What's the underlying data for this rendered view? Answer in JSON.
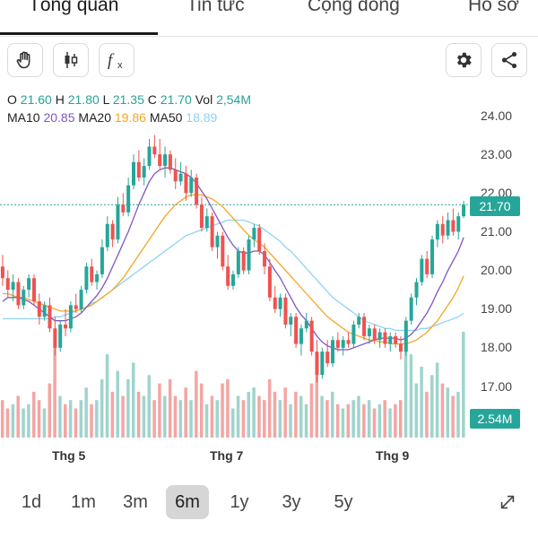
{
  "tabs": [
    {
      "label": "Tổng quan",
      "active": true
    },
    {
      "label": "Tin tức",
      "active": false
    },
    {
      "label": "Cộng đồng",
      "active": false
    },
    {
      "label": "Hồ sơ",
      "active": false
    }
  ],
  "toolbar": {
    "left_icons": [
      "hand-draw-icon",
      "candlestick-icon",
      "function-icon"
    ],
    "right_icons": [
      "gear-icon",
      "share-icon"
    ]
  },
  "legend": {
    "o_label": "O",
    "o_value": "21.60",
    "h_label": "H",
    "h_value": "21.80",
    "l_label": "L",
    "l_value": "21.35",
    "c_label": "C",
    "c_value": "21.70",
    "vol_label": "Vol",
    "vol_value": "2,54M",
    "ma10_label": "MA10",
    "ma10_value": "20.85",
    "ma20_label": "MA20",
    "ma20_value": "19.86",
    "ma50_label": "MA50",
    "ma50_value": "18.89"
  },
  "colors": {
    "up": "#26a69a",
    "down": "#ef5350",
    "ma10": "#7e57c2",
    "ma20": "#f5a623",
    "ma50": "#8fd3f4",
    "vol_up": "#9fd4cd",
    "vol_down": "#f4a5a3"
  },
  "price_tag": "21.70",
  "volume_tag": "2.54M",
  "time_ranges": [
    {
      "label": "1d",
      "active": false
    },
    {
      "label": "1m",
      "active": false
    },
    {
      "label": "3m",
      "active": false
    },
    {
      "label": "6m",
      "active": true
    },
    {
      "label": "1y",
      "active": false
    },
    {
      "label": "3y",
      "active": false
    },
    {
      "label": "5y",
      "active": false
    }
  ],
  "chart_data": {
    "type": "line",
    "y_axis_labels": [
      "24.00",
      "23.00",
      "22.00",
      "21.00",
      "20.00",
      "19.00",
      "18.00",
      "17.00"
    ],
    "ylim": [
      16.5,
      24.3
    ],
    "x_axis_labels": [
      "Thg 5",
      "Thg 7",
      "Thg 9"
    ],
    "last_close": 21.7,
    "candles": [
      [
        20.1,
        20.4,
        19.6,
        19.8
      ],
      [
        19.8,
        20.0,
        19.3,
        19.5
      ],
      [
        19.5,
        19.9,
        19.2,
        19.7
      ],
      [
        19.7,
        19.8,
        19.0,
        19.1
      ],
      [
        19.1,
        19.6,
        19.0,
        19.5
      ],
      [
        19.5,
        19.9,
        19.3,
        19.8
      ],
      [
        19.8,
        19.9,
        19.1,
        19.2
      ],
      [
        19.2,
        19.4,
        18.6,
        18.8
      ],
      [
        18.8,
        19.2,
        18.7,
        19.1
      ],
      [
        19.1,
        19.3,
        18.4,
        18.5
      ],
      [
        18.5,
        18.8,
        17.8,
        18.0
      ],
      [
        18.0,
        18.7,
        17.9,
        18.6
      ],
      [
        18.6,
        19.0,
        18.3,
        18.5
      ],
      [
        18.5,
        19.2,
        18.4,
        19.1
      ],
      [
        19.1,
        19.4,
        18.9,
        19.0
      ],
      [
        19.0,
        19.6,
        18.9,
        19.5
      ],
      [
        19.5,
        20.2,
        19.4,
        20.1
      ],
      [
        20.1,
        20.3,
        19.6,
        19.7
      ],
      [
        19.7,
        20.0,
        19.5,
        19.9
      ],
      [
        19.9,
        20.8,
        19.8,
        20.6
      ],
      [
        20.6,
        21.4,
        20.5,
        21.2
      ],
      [
        21.2,
        21.3,
        20.6,
        20.8
      ],
      [
        20.8,
        21.9,
        20.7,
        21.7
      ],
      [
        21.7,
        22.0,
        21.4,
        21.5
      ],
      [
        21.5,
        22.4,
        21.4,
        22.2
      ],
      [
        22.2,
        23.0,
        22.1,
        22.8
      ],
      [
        22.8,
        23.1,
        22.3,
        22.4
      ],
      [
        22.4,
        22.9,
        22.2,
        22.7
      ],
      [
        22.7,
        23.4,
        22.6,
        23.2
      ],
      [
        23.2,
        23.5,
        22.9,
        23.0
      ],
      [
        23.0,
        23.4,
        22.6,
        22.7
      ],
      [
        22.7,
        23.2,
        22.4,
        23.0
      ],
      [
        23.0,
        23.1,
        22.5,
        22.6
      ],
      [
        22.6,
        22.9,
        22.1,
        22.3
      ],
      [
        22.3,
        22.8,
        22.2,
        22.5
      ],
      [
        22.5,
        22.7,
        21.8,
        22.0
      ],
      [
        22.0,
        22.6,
        21.9,
        22.4
      ],
      [
        22.4,
        22.5,
        21.6,
        21.7
      ],
      [
        21.7,
        21.9,
        21.0,
        21.1
      ],
      [
        21.1,
        21.6,
        21.0,
        21.4
      ],
      [
        21.4,
        21.5,
        20.5,
        20.6
      ],
      [
        20.6,
        21.0,
        20.3,
        20.9
      ],
      [
        20.9,
        21.0,
        20.0,
        20.1
      ],
      [
        20.1,
        20.4,
        19.5,
        19.6
      ],
      [
        19.6,
        20.0,
        19.5,
        19.9
      ],
      [
        19.9,
        20.6,
        19.8,
        20.5
      ],
      [
        20.5,
        20.6,
        19.9,
        20.0
      ],
      [
        20.0,
        20.9,
        19.9,
        20.8
      ],
      [
        20.8,
        21.2,
        20.6,
        21.1
      ],
      [
        21.1,
        21.2,
        20.4,
        20.5
      ],
      [
        20.5,
        20.7,
        19.9,
        20.1
      ],
      [
        20.1,
        20.3,
        19.2,
        19.3
      ],
      [
        19.3,
        19.6,
        18.9,
        19.0
      ],
      [
        19.0,
        19.4,
        18.8,
        19.3
      ],
      [
        19.3,
        19.4,
        18.5,
        18.6
      ],
      [
        18.6,
        18.9,
        18.3,
        18.8
      ],
      [
        18.8,
        18.9,
        18.0,
        18.1
      ],
      [
        18.1,
        18.6,
        17.8,
        18.5
      ],
      [
        18.5,
        18.9,
        18.4,
        18.7
      ],
      [
        18.7,
        18.8,
        17.8,
        17.9
      ],
      [
        17.9,
        18.2,
        17.1,
        17.3
      ],
      [
        17.3,
        18.0,
        17.2,
        17.9
      ],
      [
        17.9,
        18.2,
        17.5,
        17.6
      ],
      [
        17.6,
        18.3,
        17.5,
        18.2
      ],
      [
        18.2,
        18.4,
        17.9,
        18.0
      ],
      [
        18.0,
        18.3,
        17.8,
        18.2
      ],
      [
        18.2,
        18.4,
        18.0,
        18.1
      ],
      [
        18.1,
        18.7,
        18.0,
        18.6
      ],
      [
        18.6,
        18.9,
        18.5,
        18.8
      ],
      [
        18.8,
        18.9,
        18.2,
        18.3
      ],
      [
        18.3,
        18.6,
        18.1,
        18.5
      ],
      [
        18.5,
        18.6,
        18.1,
        18.2
      ],
      [
        18.2,
        18.5,
        18.0,
        18.4
      ],
      [
        18.4,
        18.5,
        18.0,
        18.1
      ],
      [
        18.1,
        18.4,
        17.9,
        18.3
      ],
      [
        18.3,
        18.4,
        18.0,
        18.1
      ],
      [
        18.1,
        18.3,
        17.7,
        17.9
      ],
      [
        17.9,
        18.8,
        17.8,
        18.7
      ],
      [
        18.7,
        19.4,
        18.6,
        19.3
      ],
      [
        19.3,
        19.8,
        19.1,
        19.7
      ],
      [
        19.7,
        20.4,
        19.6,
        20.3
      ],
      [
        20.3,
        20.5,
        19.8,
        19.9
      ],
      [
        19.9,
        20.9,
        19.8,
        20.8
      ],
      [
        20.8,
        21.3,
        20.6,
        21.2
      ],
      [
        21.2,
        21.4,
        20.7,
        20.9
      ],
      [
        20.9,
        21.5,
        20.8,
        21.3
      ],
      [
        21.3,
        21.6,
        20.9,
        21.0
      ],
      [
        21.0,
        21.5,
        20.8,
        21.4
      ],
      [
        21.4,
        21.8,
        21.35,
        21.7
      ]
    ],
    "ma10": [
      19.2,
      19.3,
      19.3,
      19.3,
      19.25,
      19.2,
      19.1,
      19.0,
      18.9,
      18.8,
      18.7,
      18.7,
      18.7,
      18.75,
      18.8,
      18.9,
      19.05,
      19.2,
      19.35,
      19.55,
      19.8,
      20.1,
      20.4,
      20.7,
      21.0,
      21.35,
      21.7,
      22.0,
      22.3,
      22.5,
      22.6,
      22.65,
      22.65,
      22.6,
      22.55,
      22.5,
      22.4,
      22.25,
      22.05,
      21.85,
      21.6,
      21.35,
      21.1,
      20.85,
      20.65,
      20.5,
      20.45,
      20.45,
      20.5,
      20.5,
      20.4,
      20.2,
      20.0,
      19.8,
      19.55,
      19.3,
      19.05,
      18.85,
      18.7,
      18.5,
      18.3,
      18.15,
      18.05,
      18.0,
      17.95,
      17.95,
      17.95,
      18.0,
      18.05,
      18.1,
      18.15,
      18.2,
      18.25,
      18.25,
      18.25,
      18.25,
      18.2,
      18.25,
      18.35,
      18.5,
      18.7,
      18.9,
      19.15,
      19.45,
      19.7,
      20.0,
      20.25,
      20.5,
      20.85
    ],
    "ma20": [
      19.4,
      19.4,
      19.35,
      19.3,
      19.3,
      19.25,
      19.2,
      19.15,
      19.1,
      19.05,
      19.0,
      18.95,
      18.95,
      18.95,
      18.95,
      19.0,
      19.05,
      19.1,
      19.2,
      19.3,
      19.4,
      19.5,
      19.65,
      19.8,
      20.0,
      20.2,
      20.4,
      20.6,
      20.8,
      21.0,
      21.2,
      21.4,
      21.55,
      21.7,
      21.8,
      21.9,
      21.95,
      21.95,
      21.95,
      21.9,
      21.85,
      21.75,
      21.65,
      21.5,
      21.35,
      21.2,
      21.05,
      20.9,
      20.8,
      20.7,
      20.6,
      20.45,
      20.3,
      20.15,
      20.0,
      19.85,
      19.7,
      19.55,
      19.4,
      19.25,
      19.1,
      18.95,
      18.8,
      18.7,
      18.6,
      18.5,
      18.4,
      18.35,
      18.3,
      18.25,
      18.2,
      18.2,
      18.15,
      18.15,
      18.1,
      18.1,
      18.1,
      18.1,
      18.15,
      18.2,
      18.3,
      18.4,
      18.55,
      18.7,
      18.9,
      19.1,
      19.3,
      19.55,
      19.86
    ],
    "ma50": [
      18.75,
      18.75,
      18.75,
      18.75,
      18.75,
      18.75,
      18.75,
      18.75,
      18.75,
      18.75,
      18.8,
      18.8,
      18.85,
      18.9,
      18.95,
      19.0,
      19.05,
      19.15,
      19.2,
      19.3,
      19.4,
      19.5,
      19.6,
      19.7,
      19.8,
      19.9,
      20.0,
      20.1,
      20.2,
      20.3,
      20.4,
      20.5,
      20.6,
      20.7,
      20.8,
      20.9,
      20.95,
      21.0,
      21.05,
      21.1,
      21.15,
      21.2,
      21.25,
      21.3,
      21.3,
      21.3,
      21.3,
      21.25,
      21.2,
      21.15,
      21.05,
      20.95,
      20.85,
      20.75,
      20.6,
      20.5,
      20.35,
      20.2,
      20.05,
      19.9,
      19.75,
      19.6,
      19.45,
      19.3,
      19.2,
      19.1,
      19.0,
      18.9,
      18.8,
      18.7,
      18.65,
      18.6,
      18.55,
      18.5,
      18.5,
      18.45,
      18.45,
      18.45,
      18.45,
      18.45,
      18.5,
      18.5,
      18.55,
      18.6,
      18.65,
      18.7,
      18.75,
      18.8,
      18.89
    ],
    "volume": [
      0.9,
      0.7,
      0.8,
      1.0,
      0.7,
      0.8,
      1.1,
      0.9,
      0.7,
      1.3,
      2.2,
      1.0,
      0.8,
      0.9,
      0.7,
      0.9,
      1.2,
      0.8,
      0.9,
      1.4,
      2.0,
      1.1,
      1.6,
      1.0,
      1.4,
      1.8,
      1.1,
      1.0,
      1.5,
      0.9,
      1.3,
      1.0,
      1.4,
      1.0,
      0.9,
      1.2,
      0.9,
      1.6,
      1.3,
      0.8,
      1.0,
      0.9,
      1.3,
      1.4,
      0.7,
      1.0,
      0.9,
      1.1,
      1.2,
      1.0,
      0.9,
      1.4,
      1.1,
      0.9,
      1.2,
      0.8,
      1.1,
      1.0,
      0.8,
      1.3,
      1.7,
      1.0,
      0.9,
      1.1,
      0.8,
      0.7,
      0.8,
      0.9,
      1.0,
      0.8,
      0.9,
      0.7,
      0.8,
      0.9,
      0.7,
      0.8,
      0.9,
      2.4,
      2.0,
      1.3,
      1.7,
      1.1,
      1.5,
      1.8,
      1.3,
      1.2,
      1.0,
      1.1,
      2.54
    ]
  }
}
